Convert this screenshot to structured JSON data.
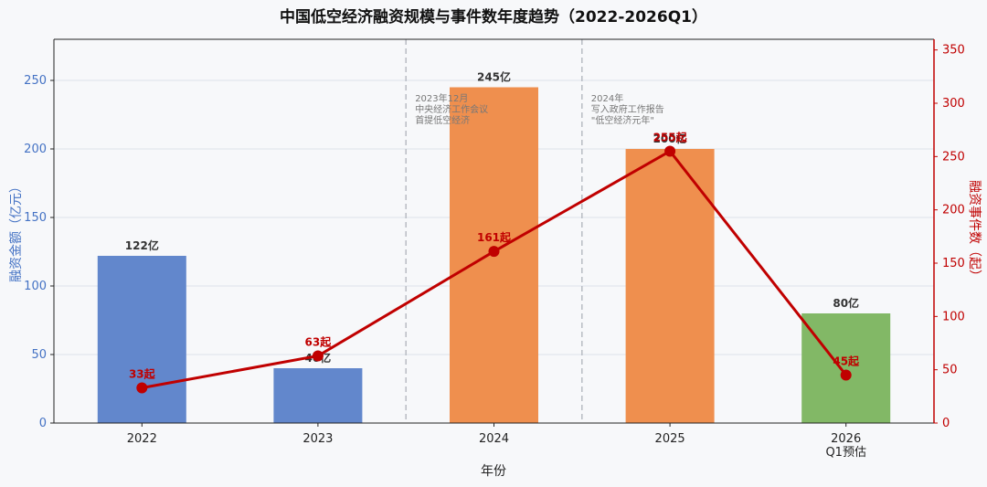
{
  "chart_data": {
    "type": "bar+line",
    "title": "中国低空经济融资规模与事件数年度趋势（2022-2026Q1）",
    "xlabel": "年份",
    "ylabel_left": "融资金额（亿元）",
    "ylabel_right": "融资事件数（起）",
    "categories": [
      {
        "line1": "2022",
        "line2": ""
      },
      {
        "line1": "2023",
        "line2": ""
      },
      {
        "line1": "2024",
        "line2": ""
      },
      {
        "line1": "2025",
        "line2": ""
      },
      {
        "line1": "2026",
        "line2": "Q1预估"
      }
    ],
    "bar_series": {
      "name": "融资金额",
      "values": [
        122,
        40,
        245,
        200,
        80
      ],
      "labels": [
        "122亿",
        "40亿",
        "245亿",
        "200亿",
        "80亿"
      ],
      "colors": [
        "#6287cc",
        "#6287cc",
        "#ef8f4e",
        "#ef8f4e",
        "#82b866"
      ]
    },
    "line_series": {
      "name": "融资事件数",
      "values": [
        33,
        63,
        161,
        255,
        45
      ],
      "labels": [
        "33起",
        "63起",
        "161起",
        "255起",
        "45起"
      ],
      "color": "#c00000"
    },
    "ylim_left": [
      0,
      280
    ],
    "yticks_left": [
      0,
      50,
      100,
      150,
      200,
      250
    ],
    "ylim_right": [
      0,
      360
    ],
    "yticks_right": [
      0,
      50,
      100,
      150,
      200,
      250,
      300,
      350
    ],
    "grid": true,
    "annotations": [
      {
        "between": [
          1,
          2
        ],
        "lines": [
          "2023年12月",
          "中央经济工作会议",
          "首提低空经济"
        ]
      },
      {
        "between": [
          2,
          3
        ],
        "lines": [
          "2024年",
          "写入政府工作报告",
          "\"低空经济元年\""
        ]
      }
    ],
    "colors": {
      "left_axis": "#4472c4",
      "right_axis": "#c00000",
      "grid": "#dde2ea",
      "divider": "#b8bcc4",
      "background": "#f7f8fa"
    }
  }
}
